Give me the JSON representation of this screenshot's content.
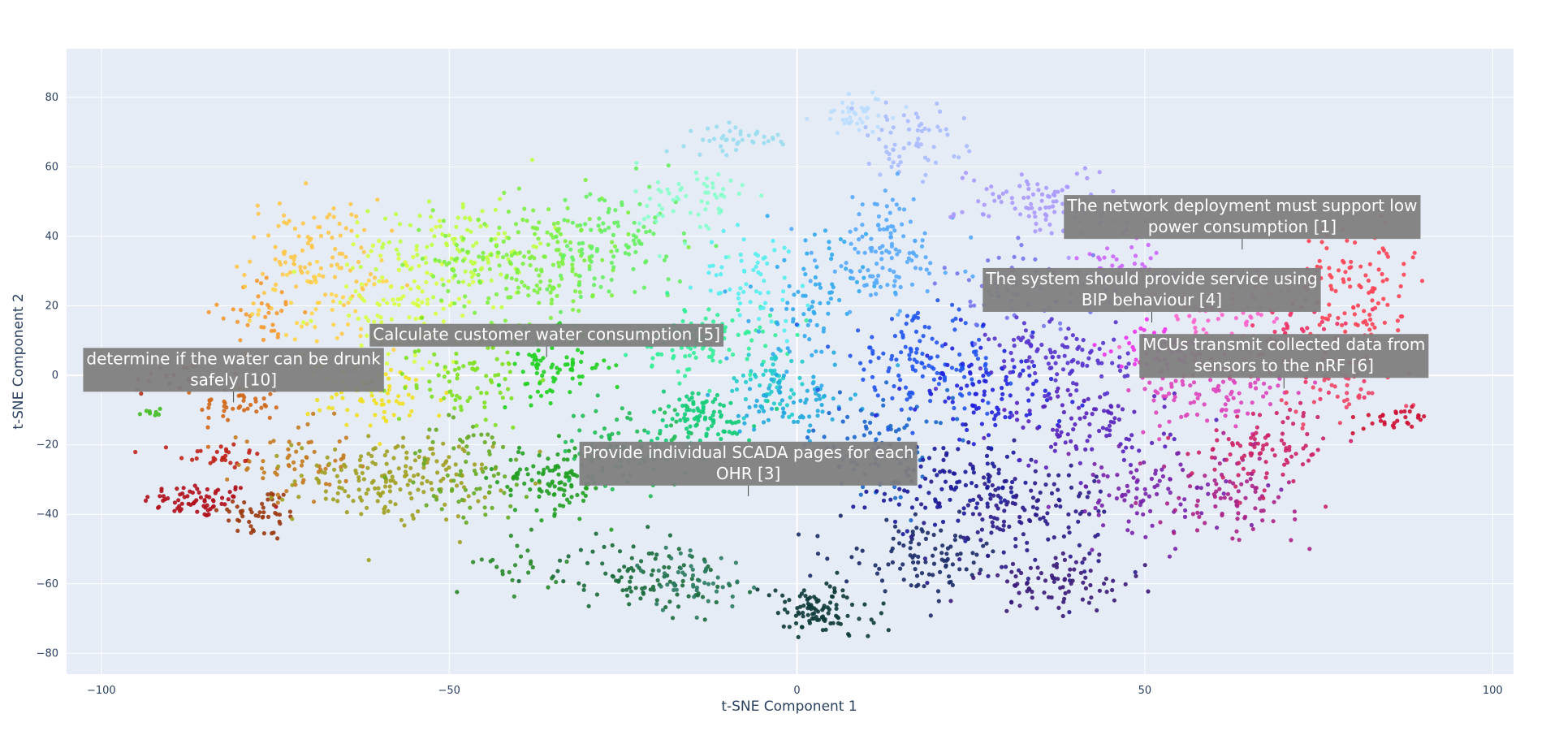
{
  "chart_data": {
    "type": "scatter",
    "xlabel": "t-SNE Component 1",
    "ylabel": "t-SNE Component 2",
    "xlim": [
      -105,
      103
    ],
    "ylim": [
      -86,
      94
    ],
    "x_ticks": [
      -100,
      -50,
      0,
      50,
      100
    ],
    "y_ticks": [
      -80,
      -60,
      -40,
      -20,
      0,
      20,
      40,
      60,
      80
    ],
    "grid": true,
    "legend": "none",
    "colors": {
      "plot_background": "#e5ecf6",
      "grid": "#ffffff",
      "annotation_background": "#7f7f7f",
      "annotation_text": "#ffffff"
    },
    "clusters": [
      {
        "x": -86,
        "y": -36,
        "sx": 4,
        "sy": 2.5,
        "n": 70,
        "color": "#b0101a"
      },
      {
        "x": -83,
        "y": -23,
        "sx": 3,
        "sy": 2,
        "n": 30,
        "color": "#c0231a"
      },
      {
        "x": -90,
        "y": 0,
        "sx": 4,
        "sy": 3,
        "n": 20,
        "color": "#b0301a"
      },
      {
        "x": -93,
        "y": -11,
        "sx": 1,
        "sy": 1,
        "n": 8,
        "color": "#44bb22"
      },
      {
        "x": -77,
        "y": -40,
        "sx": 3,
        "sy": 4,
        "n": 50,
        "color": "#9a3a10"
      },
      {
        "x": -80,
        "y": -8,
        "sx": 3,
        "sy": 3,
        "n": 45,
        "color": "#d0681a"
      },
      {
        "x": -72,
        "y": -25,
        "sx": 4,
        "sy": 6,
        "n": 60,
        "color": "#c47a1e"
      },
      {
        "x": -77,
        "y": 18,
        "sx": 3,
        "sy": 5,
        "n": 35,
        "color": "#f59a30"
      },
      {
        "x": -70,
        "y": 35,
        "sx": 5,
        "sy": 8,
        "n": 100,
        "color": "#ffc84a"
      },
      {
        "x": -67,
        "y": 20,
        "sx": 5,
        "sy": 6,
        "n": 50,
        "color": "#ffd44a"
      },
      {
        "x": -60,
        "y": -6,
        "sx": 5,
        "sy": 5,
        "n": 70,
        "color": "#f0e020"
      },
      {
        "x": -58,
        "y": -30,
        "sx": 7,
        "sy": 6,
        "n": 180,
        "color": "#a0a020"
      },
      {
        "x": -57,
        "y": 20,
        "sx": 6,
        "sy": 10,
        "n": 120,
        "color": "#d8ff40"
      },
      {
        "x": -48,
        "y": 38,
        "sx": 6,
        "sy": 7,
        "n": 100,
        "color": "#c0ff40"
      },
      {
        "x": -48,
        "y": 0,
        "sx": 5,
        "sy": 8,
        "n": 90,
        "color": "#80e020"
      },
      {
        "x": -47,
        "y": -28,
        "sx": 5,
        "sy": 8,
        "n": 70,
        "color": "#66aa22"
      },
      {
        "x": -38,
        "y": 33,
        "sx": 7,
        "sy": 9,
        "n": 200,
        "color": "#7ef040"
      },
      {
        "x": -35,
        "y": 3,
        "sx": 4,
        "sy": 5,
        "n": 80,
        "color": "#20d020"
      },
      {
        "x": -35,
        "y": -30,
        "sx": 4,
        "sy": 5,
        "n": 110,
        "color": "#22a022"
      },
      {
        "x": -40,
        "y": -55,
        "sx": 3,
        "sy": 4,
        "n": 25,
        "color": "#2a8a2a"
      },
      {
        "x": -26,
        "y": 38,
        "sx": 5,
        "sy": 9,
        "n": 100,
        "color": "#66f060"
      },
      {
        "x": -24,
        "y": -20,
        "sx": 5,
        "sy": 6,
        "n": 90,
        "color": "#22bb55"
      },
      {
        "x": -22,
        "y": -58,
        "sx": 6,
        "sy": 5,
        "n": 100,
        "color": "#1a6a3a"
      },
      {
        "x": -15,
        "y": -58,
        "sx": 4,
        "sy": 5,
        "n": 50,
        "color": "#2a7a60"
      },
      {
        "x": -15,
        "y": 50,
        "sx": 4,
        "sy": 6,
        "n": 60,
        "color": "#88ffcc"
      },
      {
        "x": -13,
        "y": 10,
        "sx": 5,
        "sy": 5,
        "n": 100,
        "color": "#33ee99"
      },
      {
        "x": -14,
        "y": -12,
        "sx": 4,
        "sy": 4,
        "n": 90,
        "color": "#11cc77"
      },
      {
        "x": -8,
        "y": 68,
        "sx": 4,
        "sy": 2,
        "n": 40,
        "color": "#99ddee"
      },
      {
        "x": -6,
        "y": 28,
        "sx": 4,
        "sy": 7,
        "n": 60,
        "color": "#55eeee"
      },
      {
        "x": -4,
        "y": -2,
        "sx": 3,
        "sy": 5,
        "n": 60,
        "color": "#22cccc"
      },
      {
        "x": 0,
        "y": -8,
        "sx": 4,
        "sy": 5,
        "n": 70,
        "color": "#22aadd"
      },
      {
        "x": 3,
        "y": -68,
        "sx": 4,
        "sy": 4,
        "n": 100,
        "color": "#0d3a3a"
      },
      {
        "x": 2,
        "y": 22,
        "sx": 4,
        "sy": 10,
        "n": 80,
        "color": "#33aaee"
      },
      {
        "x": 9,
        "y": 75,
        "sx": 3,
        "sy": 3,
        "n": 40,
        "color": "#bbddff"
      },
      {
        "x": 16,
        "y": 68,
        "sx": 4,
        "sy": 5,
        "n": 60,
        "color": "#aabbff"
      },
      {
        "x": 13,
        "y": 35,
        "sx": 5,
        "sy": 9,
        "n": 120,
        "color": "#55aaff"
      },
      {
        "x": 12,
        "y": -20,
        "sx": 5,
        "sy": 7,
        "n": 90,
        "color": "#1a66cc"
      },
      {
        "x": 18,
        "y": 3,
        "sx": 6,
        "sy": 7,
        "n": 140,
        "color": "#2255ee"
      },
      {
        "x": 22,
        "y": -32,
        "sx": 6,
        "sy": 6,
        "n": 110,
        "color": "#1a1a99"
      },
      {
        "x": 18,
        "y": -52,
        "sx": 6,
        "sy": 5,
        "n": 100,
        "color": "#1a2a66"
      },
      {
        "x": 28,
        "y": -5,
        "sx": 5,
        "sy": 7,
        "n": 100,
        "color": "#2222dd"
      },
      {
        "x": 33,
        "y": -40,
        "sx": 6,
        "sy": 8,
        "n": 140,
        "color": "#2a1a88"
      },
      {
        "x": 35,
        "y": 50,
        "sx": 6,
        "sy": 5,
        "n": 100,
        "color": "#aa99ff"
      },
      {
        "x": 32,
        "y": 25,
        "sx": 5,
        "sy": 6,
        "n": 60,
        "color": "#7777ee"
      },
      {
        "x": 38,
        "y": 5,
        "sx": 5,
        "sy": 6,
        "n": 100,
        "color": "#5533cc"
      },
      {
        "x": 42,
        "y": -15,
        "sx": 6,
        "sy": 6,
        "n": 100,
        "color": "#5522bb"
      },
      {
        "x": 38,
        "y": -60,
        "sx": 6,
        "sy": 4,
        "n": 80,
        "color": "#3a1a77"
      },
      {
        "x": 46,
        "y": 30,
        "sx": 4,
        "sy": 5,
        "n": 50,
        "color": "#cc66ff"
      },
      {
        "x": 50,
        "y": -35,
        "sx": 6,
        "sy": 6,
        "n": 90,
        "color": "#7722aa"
      },
      {
        "x": 52,
        "y": 8,
        "sx": 3,
        "sy": 3,
        "n": 50,
        "color": "#ee33ee"
      },
      {
        "x": 60,
        "y": -5,
        "sx": 6,
        "sy": 6,
        "n": 100,
        "color": "#dd44bb"
      },
      {
        "x": 62,
        "y": 20,
        "sx": 6,
        "sy": 6,
        "n": 80,
        "color": "#ff66cc"
      },
      {
        "x": 62,
        "y": -35,
        "sx": 5,
        "sy": 6,
        "n": 80,
        "color": "#aa2288"
      },
      {
        "x": 68,
        "y": -20,
        "sx": 5,
        "sy": 6,
        "n": 90,
        "color": "#cc2266"
      },
      {
        "x": 72,
        "y": 10,
        "sx": 5,
        "sy": 6,
        "n": 60,
        "color": "#ee3366"
      },
      {
        "x": 80,
        "y": 25,
        "sx": 4,
        "sy": 9,
        "n": 110,
        "color": "#ff4455"
      },
      {
        "x": 78,
        "y": -5,
        "sx": 5,
        "sy": 5,
        "n": 40,
        "color": "#ee4466"
      },
      {
        "x": 86,
        "y": -13,
        "sx": 3,
        "sy": 2,
        "n": 30,
        "color": "#cc1133"
      }
    ],
    "annotations": [
      {
        "text_lines": [
          "The network deployment must support low",
          "power consumption [1]"
        ],
        "x": 64,
        "y": 36
      },
      {
        "text_lines": [
          "The system should provide service using",
          "BIP behaviour [4]"
        ],
        "x": 51,
        "y": 15
      },
      {
        "text_lines": [
          "Calculate customer water consumption [5]"
        ],
        "x": -36,
        "y": 5
      },
      {
        "text_lines": [
          "determine if the water can be drunk",
          "safely [10]"
        ],
        "x": -81,
        "y": -8
      },
      {
        "text_lines": [
          "MCUs transmit collected data from",
          "sensors to the nRF [6]"
        ],
        "x": 70,
        "y": -4
      },
      {
        "text_lines": [
          "Provide individual SCADA pages for each",
          "OHR [3]"
        ],
        "x": -7,
        "y": -35
      }
    ]
  }
}
